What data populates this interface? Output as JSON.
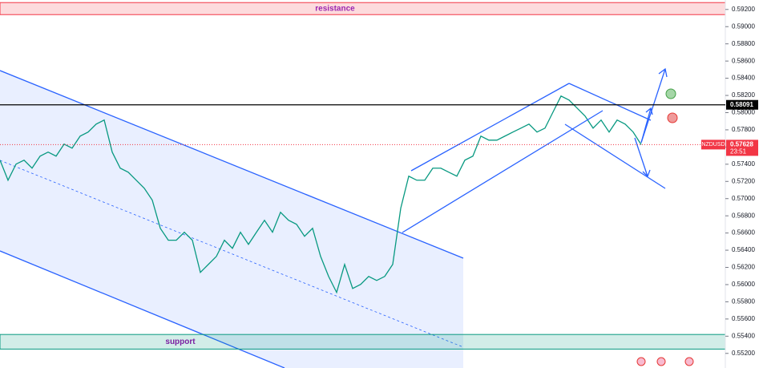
{
  "chart_data": {
    "type": "line",
    "symbol": "NZDUSD",
    "countdown": "23:51",
    "series": [
      {
        "name": "NZDUSD",
        "color": "#089981",
        "values": [
          0.57447,
          0.57214,
          0.57401,
          0.57447,
          0.57354,
          0.57494,
          0.57541,
          0.57494,
          0.57634,
          0.57587,
          0.57727,
          0.57774,
          0.57867,
          0.57914,
          0.57541,
          0.57354,
          0.57307,
          0.57214,
          0.57121,
          0.56982,
          0.56655,
          0.56516,
          0.56516,
          0.56609,
          0.56516,
          0.56142,
          0.56235,
          0.56328,
          0.56516,
          0.56422,
          0.56609,
          0.56468,
          0.56609,
          0.56748,
          0.56609,
          0.56841,
          0.56748,
          0.56701,
          0.56562,
          0.56655,
          0.56328,
          0.56095,
          0.55909,
          0.56235,
          0.55955,
          0.56002,
          0.56095,
          0.56048,
          0.56095,
          0.56235,
          0.56888,
          0.57261,
          0.57214,
          0.57214,
          0.57354,
          0.57354,
          0.57307,
          0.57261,
          0.57447,
          0.57494,
          0.57727,
          0.5768,
          0.5768,
          0.57727,
          0.57774,
          0.5782,
          0.57867,
          0.57774,
          0.5782,
          0.58007,
          0.58193,
          0.58146,
          0.58053,
          0.5796,
          0.5782,
          0.57914,
          0.57774,
          0.57914,
          0.57867,
          0.57774,
          0.57628
        ]
      }
    ],
    "ylim": [
      0.5503,
      0.5931
    ],
    "yticks": [
      {
        "value": 0.552,
        "label": "0.55200"
      },
      {
        "value": 0.554,
        "label": "0.55400"
      },
      {
        "value": 0.556,
        "label": "0.55600"
      },
      {
        "value": 0.558,
        "label": "0.55800"
      },
      {
        "value": 0.56,
        "label": "0.56000"
      },
      {
        "value": 0.562,
        "label": "0.56200"
      },
      {
        "value": 0.564,
        "label": "0.56400"
      },
      {
        "value": 0.566,
        "label": "0.56600"
      },
      {
        "value": 0.568,
        "label": "0.56800"
      },
      {
        "value": 0.57,
        "label": "0.57000"
      },
      {
        "value": 0.572,
        "label": "0.57200"
      },
      {
        "value": 0.574,
        "label": "0.57400"
      },
      {
        "value": 0.576,
        "label": "0.57600"
      },
      {
        "value": 0.578,
        "label": "0.57800"
      },
      {
        "value": 0.58,
        "label": "0.58000"
      },
      {
        "value": 0.582,
        "label": "0.58200"
      },
      {
        "value": 0.584,
        "label": "0.58400"
      },
      {
        "value": 0.586,
        "label": "0.58600"
      },
      {
        "value": 0.588,
        "label": "0.58800"
      },
      {
        "value": 0.59,
        "label": "0.59000"
      },
      {
        "value": 0.592,
        "label": "0.59200"
      }
    ],
    "level": 0.58091,
    "last_price": 0.57628,
    "resistance": {
      "label": "resistance",
      "range": [
        0.5914,
        0.5928
      ]
    },
    "support": {
      "label": "support",
      "range": [
        0.5525,
        0.5542
      ]
    }
  }
}
